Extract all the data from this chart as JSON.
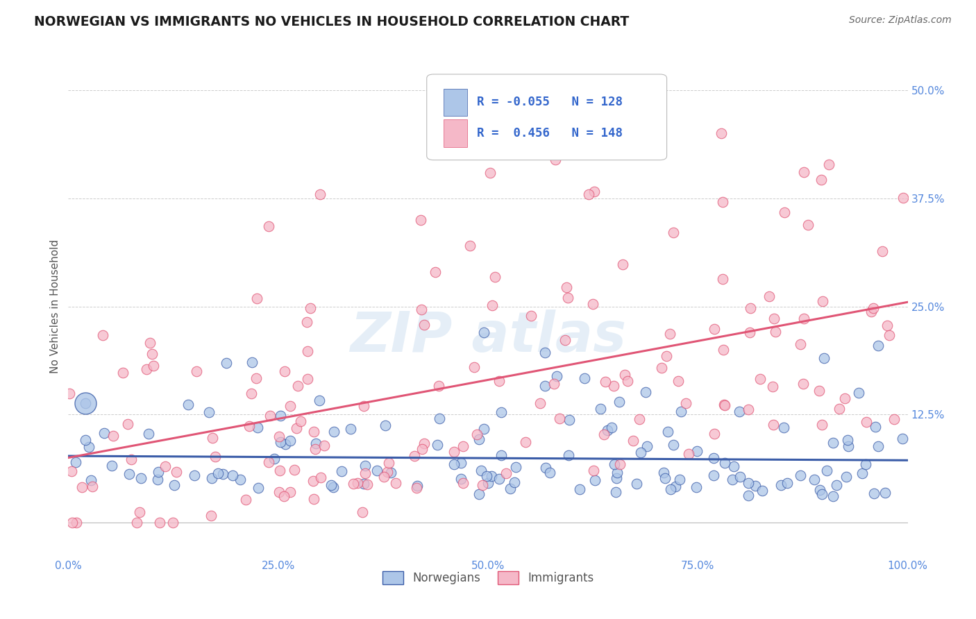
{
  "title": "NORWEGIAN VS IMMIGRANTS NO VEHICLES IN HOUSEHOLD CORRELATION CHART",
  "source": "Source: ZipAtlas.com",
  "ylabel": "No Vehicles in Household",
  "xlabel": "",
  "legend_labels": [
    "Norwegians",
    "Immigrants"
  ],
  "scatter_color_norwegian": "#adc6e8",
  "scatter_color_immigrant": "#f5b8c8",
  "line_color_norwegian": "#3a5ca8",
  "line_color_immigrant": "#e05575",
  "background_color": "#ffffff",
  "xlim": [
    0.0,
    1.0
  ],
  "ylim": [
    -0.04,
    0.54
  ],
  "xticks": [
    0.0,
    0.25,
    0.5,
    0.75,
    1.0
  ],
  "xticklabels": [
    "0.0%",
    "25.0%",
    "50.0%",
    "75.0%",
    "100.0%"
  ],
  "yticks": [
    0.0,
    0.125,
    0.25,
    0.375,
    0.5
  ],
  "yticklabels": [
    "",
    "12.5%",
    "25.0%",
    "37.5%",
    "50.0%"
  ],
  "title_color": "#1a1a1a",
  "source_color": "#666666",
  "axis_label_color": "#555555",
  "tick_color": "#aaaaaa",
  "grid_color": "#cccccc",
  "R_norwegian": -0.055,
  "R_immigrant": 0.456,
  "N_norwegian": 128,
  "N_immigrant": 148,
  "nor_line_y0": 0.077,
  "nor_line_y1": 0.072,
  "imm_line_y0": 0.075,
  "imm_line_y1": 0.255
}
